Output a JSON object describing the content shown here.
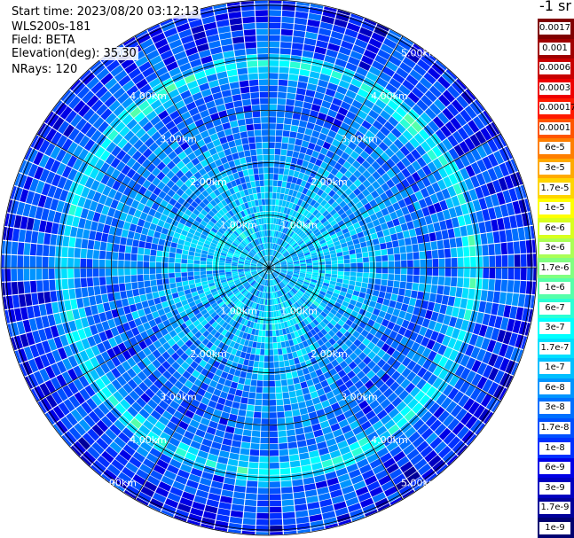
{
  "info": {
    "start_time": "Start time: 2023/08/20 03:12:13",
    "instrument": "WLS200s-181",
    "field": "Field: BETA",
    "elevation": "Elevation(deg): 35.30",
    "nrays": "NRays: 120"
  },
  "colorbar": {
    "title": "-1 sr",
    "labels": [
      "0.0017",
      "0.001",
      "0.0006",
      "0.0003",
      "0.00017",
      "0.0001",
      "6e-5",
      "3e-5",
      "1.7e-5",
      "1e-5",
      "6e-6",
      "3e-6",
      "1.7e-6",
      "1e-6",
      "6e-7",
      "3e-7",
      "1.7e-7",
      "1e-7",
      "6e-8",
      "3e-8",
      "1.7e-8",
      "1e-8",
      "6e-9",
      "3e-9",
      "1.7e-9",
      "1e-9"
    ],
    "colors": [
      "#800000",
      "#a00000",
      "#c80000",
      "#ee0000",
      "#ff1a00",
      "#ff5500",
      "#ff7f00",
      "#ffaa00",
      "#ffd500",
      "#ffff00",
      "#d8ff1e",
      "#aaff55",
      "#80ff80",
      "#55ffaa",
      "#2affd5",
      "#00ffff",
      "#00e0ff",
      "#00bfff",
      "#0095ff",
      "#0070ff",
      "#0050ff",
      "#0030ff",
      "#0000e6",
      "#0000c0",
      "#00009a",
      "#000070"
    ]
  },
  "chart_data": {
    "type": "heatmap",
    "projection": "polar PPI scan",
    "n_rays": 120,
    "elevation_deg": 35.3,
    "field": "BETA",
    "range_rings_km": [
      1.0,
      2.0,
      3.0,
      4.0,
      5.0
    ],
    "range_ring_labels": [
      "1.00km",
      "2.00km",
      "3.00km",
      "4.00km",
      "5.00km"
    ],
    "max_range_km": 5.1,
    "spoke_interval_deg": 30,
    "value_units": "m-1 sr-1",
    "color_scale": "log",
    "value_range": [
      1e-09,
      0.0017
    ],
    "radial_profile": [
      {
        "range_km": 0.5,
        "typical_value": 1e-07
      },
      {
        "range_km": 1.0,
        "typical_value": 1.5e-07
      },
      {
        "range_km": 1.5,
        "typical_value": 8e-08
      },
      {
        "range_km": 2.0,
        "typical_value": 6e-08
      },
      {
        "range_km": 2.5,
        "typical_value": 4e-08
      },
      {
        "range_km": 3.0,
        "typical_value": 3e-08
      },
      {
        "range_km": 3.5,
        "typical_value": 2.5e-08
      },
      {
        "range_km": 3.9,
        "typical_value": 3e-07
      },
      {
        "range_km": 4.2,
        "typical_value": 2e-08
      },
      {
        "range_km": 4.6,
        "typical_value": 1.5e-08
      },
      {
        "range_km": 5.0,
        "typical_value": 1e-08
      }
    ],
    "feature": "enhanced backscatter ring near 3.9 km range"
  }
}
